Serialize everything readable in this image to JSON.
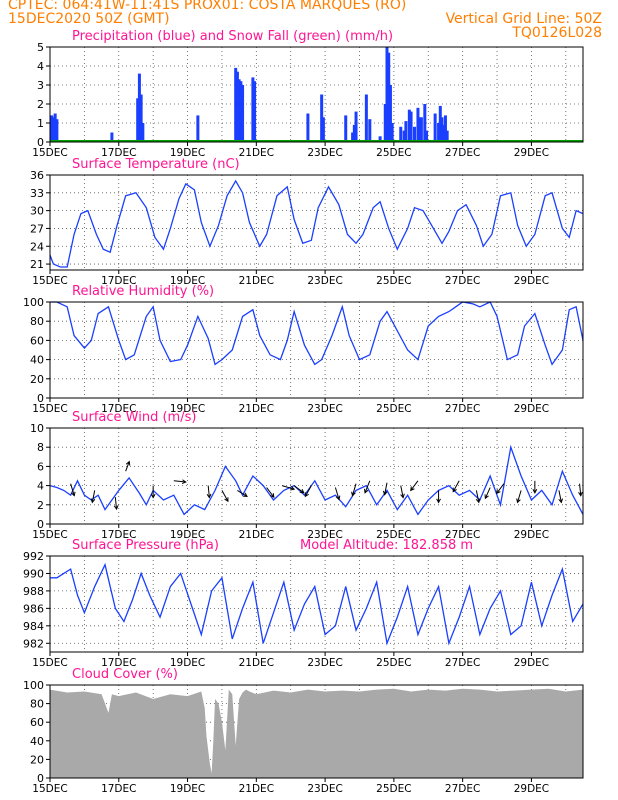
{
  "header": {
    "line1_left": "CPTEC:   064:41W-11:41S   PROX01: COSTA MARQUES (RO)",
    "line2_left": "15DEC2020 50Z (GMT)",
    "line2_right": "Vertical Grid Line: 50Z",
    "line3_right": "TQ0126L028"
  },
  "colors": {
    "precip": "#1a3fff",
    "snow": "#00a000",
    "line": "#1a3fff",
    "cloud": "#a9a9a9",
    "title": "#ff1493",
    "header": "#ff7f00"
  },
  "x_ticks": [
    "15DEC",
    "17DEC",
    "19DEC",
    "21DEC",
    "23DEC",
    "25DEC",
    "27DEC",
    "29DEC"
  ],
  "chart_data": [
    {
      "type": "bar",
      "title": "Precipitation (blue) and Snow Fall (green) (mm/h)",
      "ylim": [
        0,
        5
      ],
      "yticks": [
        "0",
        "1",
        "2",
        "3",
        "4",
        "5"
      ],
      "x_range": [
        0,
        15.5
      ],
      "series": [
        {
          "name": "Precipitation",
          "x": [
            0.05,
            0.1,
            0.15,
            0.2,
            1.8,
            2.55,
            2.6,
            2.65,
            2.7,
            4.3,
            5.4,
            5.45,
            5.5,
            5.55,
            5.6,
            5.9,
            5.95,
            7.5,
            7.9,
            7.95,
            8.6,
            8.8,
            8.85,
            8.9,
            9.2,
            9.3,
            9.6,
            9.75,
            9.8,
            9.85,
            9.9,
            9.95,
            10.2,
            10.3,
            10.35,
            10.45,
            10.5,
            10.6,
            10.7,
            10.75,
            10.8,
            10.9,
            10.95,
            11.2,
            11.3,
            11.35,
            11.4,
            11.45,
            11.5,
            11.55
          ],
          "values": [
            1.4,
            1.3,
            1.5,
            1.2,
            0.5,
            2.3,
            3.6,
            2.5,
            1.0,
            1.4,
            3.9,
            3.7,
            3.3,
            3.2,
            3.0,
            3.4,
            3.2,
            1.5,
            2.5,
            1.3,
            1.4,
            0.5,
            0.9,
            1.6,
            2.5,
            1.2,
            0.3,
            2.0,
            5.0,
            4.7,
            3.0,
            1.0,
            0.8,
            0.6,
            1.1,
            1.7,
            1.6,
            0.8,
            1.8,
            1.3,
            1.3,
            2.0,
            0.6,
            1.5,
            1.0,
            1.9,
            1.3,
            0.9,
            1.4,
            0.6
          ]
        },
        {
          "name": "Snow Fall",
          "x": [],
          "values": []
        }
      ]
    },
    {
      "type": "line",
      "title": "Surface Temperature (nC)",
      "ylim": [
        20,
        36
      ],
      "yticks": [
        "21",
        "24",
        "27",
        "30",
        "33",
        "36"
      ],
      "x": [
        0,
        0.1,
        0.3,
        0.5,
        0.7,
        0.9,
        1.1,
        1.35,
        1.55,
        1.75,
        1.95,
        2.2,
        2.5,
        2.8,
        3.05,
        3.3,
        3.5,
        3.75,
        3.95,
        4.2,
        4.4,
        4.65,
        4.9,
        5.15,
        5.4,
        5.6,
        5.8,
        6.1,
        6.3,
        6.6,
        6.9,
        7.1,
        7.35,
        7.6,
        7.8,
        8.1,
        8.4,
        8.65,
        8.9,
        9.1,
        9.4,
        9.6,
        9.85,
        10.1,
        10.4,
        10.6,
        10.85,
        11.1,
        11.4,
        11.6,
        11.85,
        12.1,
        12.4,
        12.6,
        12.85,
        13.1,
        13.4,
        13.6,
        13.85,
        14.1,
        14.4,
        14.6,
        14.9,
        15.1,
        15.3,
        15.5
      ],
      "values": [
        22.5,
        21,
        20.5,
        20.5,
        26,
        29.5,
        30,
        26,
        23.5,
        23,
        27.5,
        32.5,
        33,
        30.5,
        25.5,
        23.5,
        27,
        32,
        34.5,
        33.5,
        28,
        24,
        27.5,
        32.5,
        35,
        33,
        28,
        24,
        26,
        32.5,
        34,
        28.5,
        24.5,
        25,
        30.5,
        34,
        31,
        26,
        24.5,
        26,
        30.5,
        31.5,
        27,
        23.5,
        27,
        30.5,
        30,
        27.5,
        24.5,
        26.5,
        30,
        31,
        27.5,
        24,
        26,
        32.5,
        33,
        27.5,
        24,
        26,
        32.5,
        33,
        27,
        25.5,
        30,
        29.5
      ]
    },
    {
      "type": "line",
      "title": "Relative Humidity (%)",
      "ylim": [
        0,
        100
      ],
      "yticks": [
        "0",
        "20",
        "40",
        "60",
        "80",
        "100"
      ],
      "x": [
        0,
        0.2,
        0.5,
        0.7,
        1.0,
        1.2,
        1.4,
        1.7,
        2.0,
        2.2,
        2.45,
        2.8,
        3.0,
        3.2,
        3.5,
        3.8,
        4.0,
        4.3,
        4.6,
        4.8,
        5.0,
        5.3,
        5.6,
        5.9,
        6.1,
        6.4,
        6.7,
        6.9,
        7.1,
        7.4,
        7.7,
        7.9,
        8.2,
        8.5,
        8.7,
        9.0,
        9.3,
        9.6,
        9.8,
        10.1,
        10.4,
        10.7,
        11.0,
        11.3,
        11.6,
        11.8,
        12.0,
        12.3,
        12.5,
        12.8,
        13.0,
        13.3,
        13.6,
        13.8,
        14.1,
        14.4,
        14.6,
        14.9,
        15.1,
        15.3,
        15.5
      ],
      "values": [
        100,
        100,
        95,
        65,
        52,
        60,
        88,
        95,
        60,
        40,
        45,
        85,
        95,
        60,
        38,
        40,
        55,
        85,
        62,
        35,
        40,
        50,
        85,
        92,
        65,
        45,
        40,
        60,
        90,
        55,
        35,
        40,
        65,
        95,
        65,
        40,
        45,
        80,
        90,
        70,
        50,
        40,
        75,
        85,
        90,
        95,
        100,
        98,
        95,
        100,
        85,
        40,
        45,
        75,
        88,
        55,
        35,
        50,
        92,
        95,
        60
      ]
    },
    {
      "type": "line",
      "title": "Surface Wind (m/s)",
      "ylim": [
        0,
        10
      ],
      "yticks": [
        "0",
        "2",
        "4",
        "6",
        "8",
        "10"
      ],
      "x": [
        0,
        0.2,
        0.4,
        0.6,
        0.8,
        1.0,
        1.2,
        1.4,
        1.6,
        1.8,
        2.0,
        2.3,
        2.6,
        2.8,
        3.0,
        3.3,
        3.6,
        3.9,
        4.2,
        4.5,
        4.8,
        5.1,
        5.4,
        5.6,
        5.9,
        6.2,
        6.5,
        6.8,
        7.1,
        7.4,
        7.7,
        8.0,
        8.3,
        8.6,
        8.9,
        9.2,
        9.5,
        9.8,
        10.1,
        10.4,
        10.7,
        11.0,
        11.3,
        11.6,
        11.9,
        12.2,
        12.5,
        12.8,
        13.1,
        13.4,
        13.7,
        14.0,
        14.3,
        14.6,
        14.9,
        15.2,
        15.5
      ],
      "values": [
        4.0,
        3.8,
        3.5,
        3.0,
        4.5,
        3.0,
        2.5,
        3.0,
        1.5,
        2.5,
        3.5,
        4.8,
        3.2,
        2.0,
        3.5,
        2.5,
        3.0,
        1.0,
        2.0,
        1.5,
        3.5,
        6.0,
        4.5,
        3.0,
        5.0,
        4.0,
        2.5,
        3.5,
        4.0,
        3.0,
        4.5,
        2.5,
        3.0,
        1.8,
        3.5,
        4.0,
        2.0,
        3.5,
        1.5,
        3.0,
        1.0,
        2.5,
        3.5,
        4.0,
        3.0,
        3.5,
        2.5,
        5.0,
        2.0,
        8.0,
        5.0,
        2.5,
        3.5,
        2.0,
        5.5,
        3.0,
        1.0
      ],
      "arrows": [
        {
          "x": 0.6,
          "y": 4.2,
          "u": 0.3,
          "v": -1.0
        },
        {
          "x": 1.3,
          "y": 3.5,
          "u": -0.2,
          "v": -1.0
        },
        {
          "x": 1.9,
          "y": 2.8,
          "u": 0.1,
          "v": -1.0
        },
        {
          "x": 2.2,
          "y": 5.5,
          "u": 0.3,
          "v": 0.8
        },
        {
          "x": 3.0,
          "y": 4.0,
          "u": 0.0,
          "v": -1.0
        },
        {
          "x": 3.6,
          "y": 4.5,
          "u": 1.0,
          "v": -0.1
        },
        {
          "x": 4.6,
          "y": 4.0,
          "u": 0.1,
          "v": -1.0
        },
        {
          "x": 5.0,
          "y": 3.5,
          "u": 0.5,
          "v": -0.9
        },
        {
          "x": 5.45,
          "y": 3.5,
          "u": 0.8,
          "v": -0.5
        },
        {
          "x": 6.3,
          "y": 3.8,
          "u": 0.6,
          "v": -0.8
        },
        {
          "x": 6.75,
          "y": 4.0,
          "u": 1.0,
          "v": -0.3
        },
        {
          "x": 7.1,
          "y": 4.0,
          "u": 0.8,
          "v": -0.6
        },
        {
          "x": 7.6,
          "y": 4.0,
          "u": -0.5,
          "v": -0.9
        },
        {
          "x": 8.3,
          "y": 3.8,
          "u": 0.3,
          "v": -1.0
        },
        {
          "x": 8.9,
          "y": 4.2,
          "u": -0.3,
          "v": -1.0
        },
        {
          "x": 9.3,
          "y": 4.5,
          "u": -0.4,
          "v": -1.0
        },
        {
          "x": 9.8,
          "y": 4.3,
          "u": -0.2,
          "v": -1.0
        },
        {
          "x": 10.2,
          "y": 4.0,
          "u": 0.2,
          "v": -1.0
        },
        {
          "x": 10.7,
          "y": 4.5,
          "u": -0.6,
          "v": -0.8
        },
        {
          "x": 11.3,
          "y": 3.5,
          "u": 0.0,
          "v": -1.0
        },
        {
          "x": 11.9,
          "y": 4.5,
          "u": -0.5,
          "v": -0.9
        },
        {
          "x": 12.4,
          "y": 3.5,
          "u": 0.2,
          "v": -1.0
        },
        {
          "x": 12.8,
          "y": 3.8,
          "u": -0.4,
          "v": -0.9
        },
        {
          "x": 13.2,
          "y": 4.2,
          "u": -0.6,
          "v": -0.8
        },
        {
          "x": 13.7,
          "y": 3.5,
          "u": -0.3,
          "v": -1.0
        },
        {
          "x": 14.1,
          "y": 4.5,
          "u": 0.0,
          "v": -1.0
        },
        {
          "x": 14.8,
          "y": 3.5,
          "u": 0.2,
          "v": -1.0
        },
        {
          "x": 15.4,
          "y": 4.2,
          "u": 0.1,
          "v": -1.0
        }
      ]
    },
    {
      "type": "line",
      "title": "Surface Pressure (hPa)",
      "annotation": "Model Altitude: 182.858 m",
      "ylim": [
        981,
        992
      ],
      "yticks": [
        "982",
        "984",
        "986",
        "988",
        "990",
        "992"
      ],
      "x": [
        0,
        0.2,
        0.4,
        0.6,
        0.8,
        1.0,
        1.3,
        1.6,
        1.9,
        2.15,
        2.4,
        2.65,
        2.9,
        3.2,
        3.5,
        3.8,
        4.1,
        4.4,
        4.7,
        5.0,
        5.3,
        5.6,
        5.9,
        6.2,
        6.5,
        6.8,
        7.1,
        7.4,
        7.7,
        8.0,
        8.3,
        8.6,
        8.9,
        9.2,
        9.5,
        9.8,
        10.1,
        10.4,
        10.7,
        11.0,
        11.3,
        11.6,
        11.9,
        12.2,
        12.5,
        12.8,
        13.1,
        13.4,
        13.7,
        14.0,
        14.3,
        14.6,
        14.9,
        15.2,
        15.5
      ],
      "values": [
        989.5,
        989.5,
        990,
        990.5,
        987.5,
        985.5,
        988.5,
        991,
        986,
        984.5,
        987,
        990,
        987.5,
        985,
        988.5,
        990,
        986.5,
        983,
        988,
        989.5,
        982.5,
        986,
        989,
        982,
        985.5,
        989,
        983.5,
        986.5,
        988.5,
        983,
        984,
        988.5,
        983.5,
        986,
        989,
        982,
        985,
        988.5,
        983,
        986,
        988.5,
        982,
        985,
        988.5,
        983,
        986,
        988,
        983,
        984,
        989,
        984,
        987.5,
        990.5,
        984.5,
        986.5
      ]
    },
    {
      "type": "area",
      "title": "Cloud Cover (%)",
      "ylim": [
        0,
        100
      ],
      "yticks": [
        "0",
        "20",
        "40",
        "60",
        "80",
        "100"
      ],
      "x": [
        0,
        0.5,
        1.0,
        1.5,
        1.7,
        1.8,
        2.0,
        2.5,
        3.0,
        3.5,
        4.0,
        4.4,
        4.5,
        4.55,
        4.6,
        4.65,
        4.7,
        4.75,
        4.8,
        4.9,
        5.0,
        5.1,
        5.2,
        5.3,
        5.4,
        5.5,
        5.6,
        5.7,
        5.8,
        6.0,
        6.5,
        7.0,
        7.5,
        8.0,
        8.5,
        9.0,
        9.5,
        10.0,
        10.5,
        11.0,
        11.5,
        12.0,
        12.5,
        13.0,
        13.5,
        14.0,
        14.5,
        15.0,
        15.5
      ],
      "values": [
        95,
        92,
        93,
        90,
        70,
        90,
        88,
        92,
        85,
        90,
        88,
        93,
        75,
        45,
        30,
        15,
        5,
        40,
        85,
        80,
        60,
        30,
        95,
        90,
        35,
        85,
        92,
        95,
        93,
        90,
        94,
        92,
        95,
        93,
        94,
        93,
        95,
        96,
        93,
        95,
        94,
        96,
        95,
        93,
        94,
        95,
        96,
        93,
        95
      ]
    }
  ]
}
